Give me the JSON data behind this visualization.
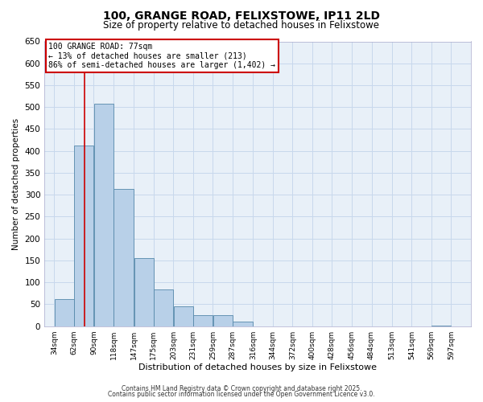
{
  "title_line1": "100, GRANGE ROAD, FELIXSTOWE, IP11 2LD",
  "title_line2": "Size of property relative to detached houses in Felixstowe",
  "xlabel": "Distribution of detached houses by size in Felixstowe",
  "ylabel": "Number of detached properties",
  "footer_line1": "Contains HM Land Registry data © Crown copyright and database right 2025.",
  "footer_line2": "Contains public sector information licensed under the Open Government Licence v3.0.",
  "annotation_title": "100 GRANGE ROAD: 77sqm",
  "annotation_line1": "← 13% of detached houses are smaller (213)",
  "annotation_line2": "86% of semi-detached houses are larger (1,402) →",
  "property_size_sqm": 77,
  "bar_left_edges": [
    34,
    62,
    90,
    118,
    147,
    175,
    203,
    231,
    259,
    287,
    316,
    344,
    372,
    400,
    428,
    456,
    484,
    513,
    541,
    569
  ],
  "bar_widths": [
    28,
    28,
    28,
    29,
    28,
    28,
    28,
    28,
    28,
    29,
    28,
    28,
    28,
    28,
    28,
    28,
    29,
    28,
    28,
    28
  ],
  "bar_heights": [
    62,
    413,
    507,
    313,
    155,
    83,
    46,
    25,
    25,
    10,
    0,
    0,
    0,
    0,
    0,
    0,
    0,
    0,
    0,
    2
  ],
  "bar_color": "#b8d0e8",
  "bar_edge_color": "#5588aa",
  "vline_color": "#cc0000",
  "vline_x": 77,
  "xlim": [
    20,
    625
  ],
  "ylim": [
    0,
    650
  ],
  "yticks": [
    0,
    50,
    100,
    150,
    200,
    250,
    300,
    350,
    400,
    450,
    500,
    550,
    600,
    650
  ],
  "xtick_labels": [
    "34sqm",
    "62sqm",
    "90sqm",
    "118sqm",
    "147sqm",
    "175sqm",
    "203sqm",
    "231sqm",
    "259sqm",
    "287sqm",
    "316sqm",
    "344sqm",
    "372sqm",
    "400sqm",
    "428sqm",
    "456sqm",
    "484sqm",
    "513sqm",
    "541sqm",
    "569sqm",
    "597sqm"
  ],
  "xtick_positions": [
    34,
    62,
    90,
    118,
    147,
    175,
    203,
    231,
    259,
    287,
    316,
    344,
    372,
    400,
    428,
    456,
    484,
    513,
    541,
    569,
    597
  ],
  "grid_color": "#c8d8ec",
  "plot_bg_color": "#e8f0f8",
  "fig_bg_color": "#ffffff",
  "annotation_box_color": "#ffffff",
  "annotation_box_edge": "#cc0000"
}
